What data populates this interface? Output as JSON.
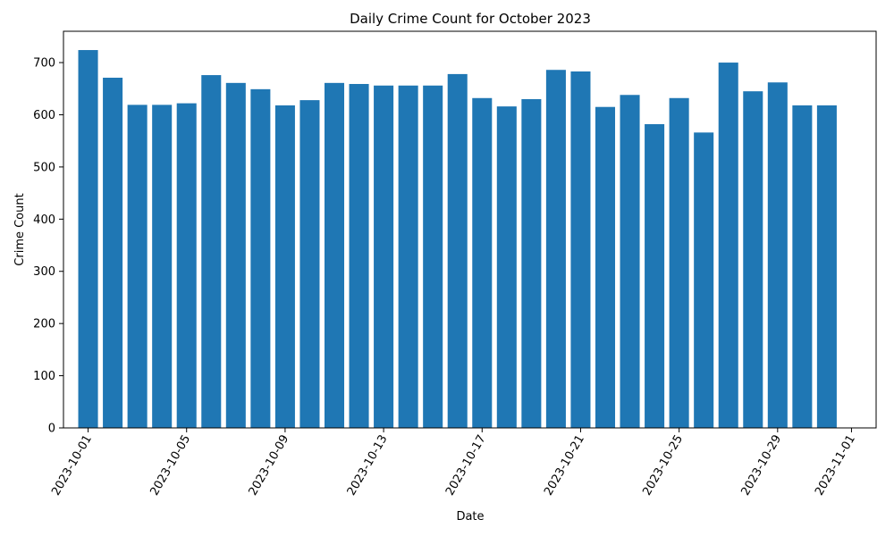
{
  "chart_data": {
    "type": "bar",
    "title": "Daily Crime Count for October 2023",
    "xlabel": "Date",
    "ylabel": "Crime Count",
    "ylim": [
      0,
      760
    ],
    "xlim": [
      "2023-09-30",
      "2023-11-02"
    ],
    "grid": false,
    "legend": "none",
    "bar_color": "#1f77b4",
    "x": [
      "2023-10-01",
      "2023-10-02",
      "2023-10-03",
      "2023-10-04",
      "2023-10-05",
      "2023-10-06",
      "2023-10-07",
      "2023-10-08",
      "2023-10-09",
      "2023-10-10",
      "2023-10-11",
      "2023-10-12",
      "2023-10-13",
      "2023-10-14",
      "2023-10-15",
      "2023-10-16",
      "2023-10-17",
      "2023-10-18",
      "2023-10-19",
      "2023-10-20",
      "2023-10-21",
      "2023-10-22",
      "2023-10-23",
      "2023-10-24",
      "2023-10-25",
      "2023-10-26",
      "2023-10-27",
      "2023-10-28",
      "2023-10-29",
      "2023-10-30",
      "2023-10-31"
    ],
    "values": [
      724,
      671,
      619,
      619,
      622,
      676,
      661,
      649,
      618,
      628,
      661,
      659,
      656,
      656,
      656,
      678,
      632,
      616,
      630,
      686,
      683,
      615,
      638,
      582,
      632,
      566,
      700,
      645,
      662,
      618,
      618
    ],
    "yticks": [
      0,
      100,
      200,
      300,
      400,
      500,
      600,
      700
    ],
    "xticks": [
      "2023-10-01",
      "2023-10-05",
      "2023-10-09",
      "2023-10-13",
      "2023-10-17",
      "2023-10-21",
      "2023-10-25",
      "2023-10-29",
      "2023-11-01"
    ]
  }
}
